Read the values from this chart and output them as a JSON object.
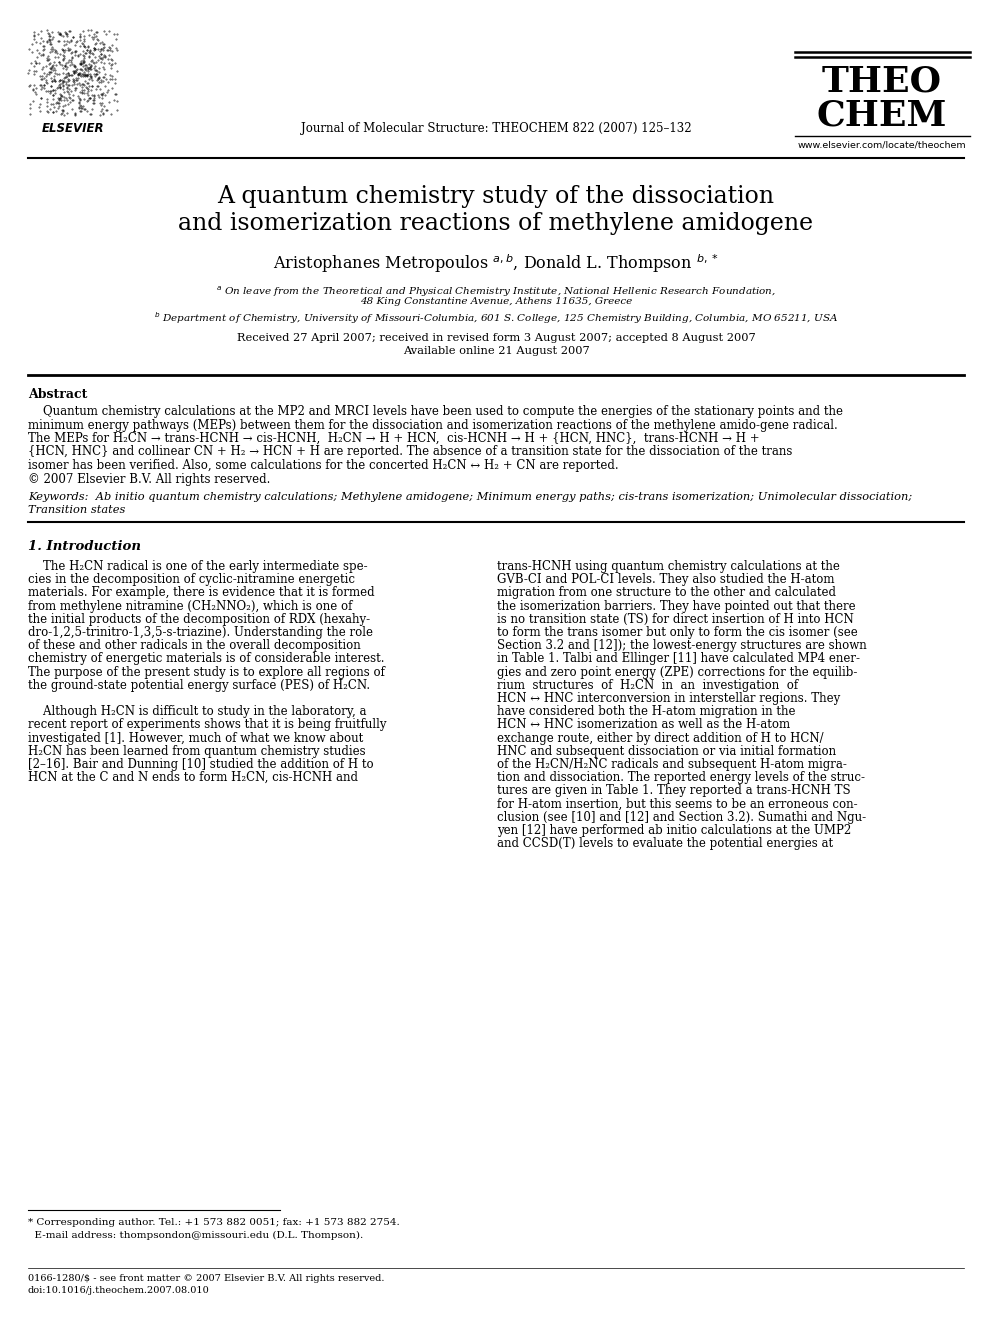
{
  "bg_color": "#ffffff",
  "title_line1": "A quantum chemistry study of the dissociation",
  "title_line2": "and isomerization reactions of methylene amidogene",
  "journal_text": "Journal of Molecular Structure: THEOCHEM 822 (2007) 125–132",
  "theochem_line1": "THEO",
  "theochem_line2": "CHEM",
  "elsevier_text": "ELSEVIER",
  "website": "www.elsevier.com/locate/theochem",
  "affil_a": "On leave from the Theoretical and Physical Chemistry Institute, National Hellenic Research Foundation,",
  "affil_a2": "48 King Constantine Avenue, Athens 11635, Greece",
  "affil_b": "Department of Chemistry, University of Missouri-Columbia, 601 S. College, 125 Chemistry Building, Columbia, MO 65211, USA",
  "received": "Received 27 April 2007; received in revised form 3 August 2007; accepted 8 August 2007",
  "available": "Available online 21 August 2007",
  "abstract_title": "Abstract",
  "keywords_label": "Keywords:",
  "keywords_text1": "Ab initio quantum chemistry calculations; Methylene amidogene; Minimum energy paths; cis-trans isomerization; Unimolecular dissociation;",
  "keywords_text2": "Transition states",
  "section1_title": "1. Introduction",
  "footnote_line1": "* Corresponding author. Tel.: +1 573 882 0051; fax: +1 573 882 2754.",
  "footnote_line2": "  E-mail address: thompsondon@missouri.edu (D.L. Thompson).",
  "footer_issn": "0166-1280/$ - see front matter © 2007 Elsevier B.V. All rights reserved.",
  "footer_doi": "doi:10.1016/j.theochem.2007.08.010"
}
